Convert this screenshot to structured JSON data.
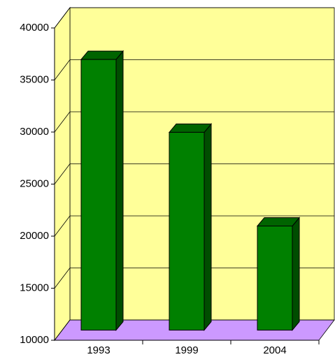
{
  "chart_data": {
    "type": "bar",
    "categories": [
      "1993",
      "1999",
      "2004"
    ],
    "values": [
      36000,
      29000,
      20000
    ],
    "color": "#008000",
    "ylim": [
      10000,
      40000
    ],
    "yticks": [
      10000,
      15000,
      20000,
      25000,
      30000,
      35000,
      40000
    ],
    "grid": true
  }
}
